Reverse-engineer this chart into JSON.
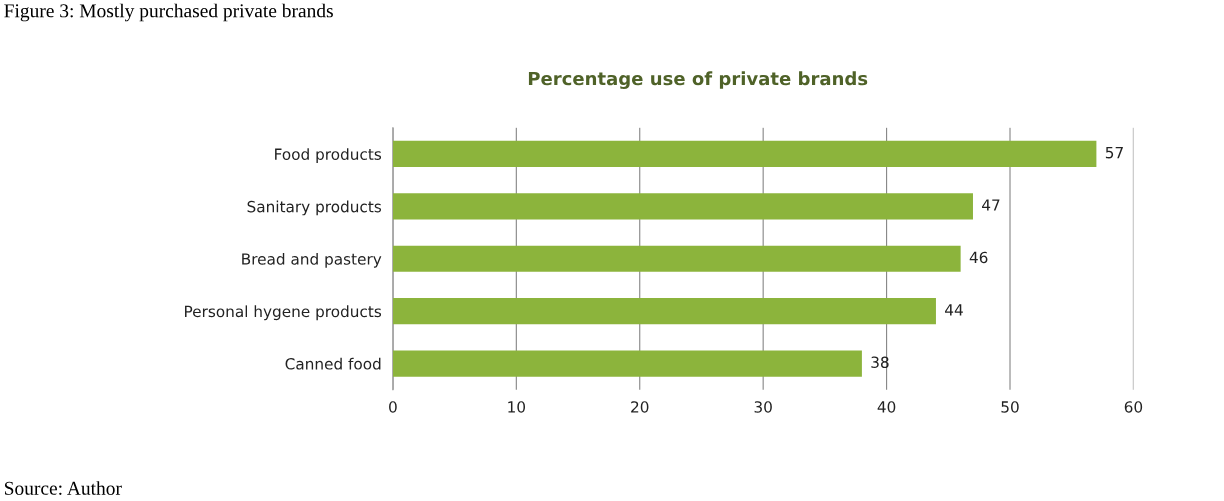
{
  "chart_data": {
    "type": "bar",
    "orientation": "horizontal",
    "title": "Percentage use of private brands",
    "categories": [
      "Food products",
      "Sanitary products",
      "Bread and pastery",
      "Personal hygene products",
      "Canned food"
    ],
    "values": [
      57,
      47,
      46,
      44,
      38
    ],
    "color": "#8cb43c",
    "xlim": [
      0,
      60
    ],
    "xticks": [
      0,
      10,
      20,
      30,
      40,
      50,
      60
    ],
    "grid": "x",
    "data_labels": true,
    "legend": false,
    "annotations": [
      "Figure 3: Mostly purchased private brands",
      "Source: Author"
    ]
  }
}
